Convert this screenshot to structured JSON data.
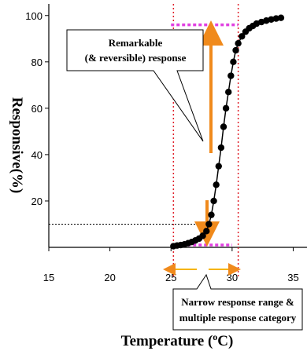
{
  "chart_data": {
    "type": "line",
    "xlabel": [
      "Temperature (",
      "o",
      "C)"
    ],
    "ylabel": "Responsive(%)",
    "x": [
      25.2,
      25.5,
      25.8,
      26.1,
      26.4,
      26.7,
      27.0,
      27.3,
      27.6,
      27.9,
      28.1,
      28.3,
      28.5,
      28.7,
      28.9,
      29.1,
      29.3,
      29.5,
      29.7,
      29.9,
      30.1,
      30.3,
      30.5,
      30.8,
      31.1,
      31.4,
      31.7,
      32.0,
      32.4,
      32.8,
      33.2,
      33.6,
      34.0
    ],
    "series": [
      {
        "color": "#000000",
        "values": [
          0.5,
          0.8,
          1,
          1.3,
          1.8,
          2.3,
          3,
          3.8,
          5,
          7,
          10,
          14,
          20,
          27,
          35,
          43,
          52,
          60,
          67,
          74,
          80,
          85,
          88,
          91,
          93,
          94.5,
          95.5,
          96.5,
          97.2,
          97.8,
          98.3,
          98.7,
          99
        ]
      }
    ],
    "xlim": [
      15,
      36
    ],
    "xticks": [
      15,
      20,
      25,
      30,
      35
    ],
    "ylim": [
      0,
      105
    ],
    "yticks": [
      20,
      40,
      60,
      80,
      100
    ],
    "reference_lines": [
      {
        "x": 25.2,
        "color": "#e0202a"
      },
      {
        "x": 30.5,
        "color": "#e0202a"
      },
      {
        "y": 96,
        "xrange": [
          25,
          30.5
        ],
        "color": "#e040e0"
      },
      {
        "y": 1,
        "xrange": [
          25,
          30
        ],
        "color": "#e040e0"
      },
      {
        "y": 10,
        "xrange": [
          15,
          28
        ],
        "color": "#000000"
      }
    ],
    "annotations": [
      "Remarkable",
      "(& reversible) response",
      "Narrow response range &",
      "multiple response category"
    ]
  }
}
